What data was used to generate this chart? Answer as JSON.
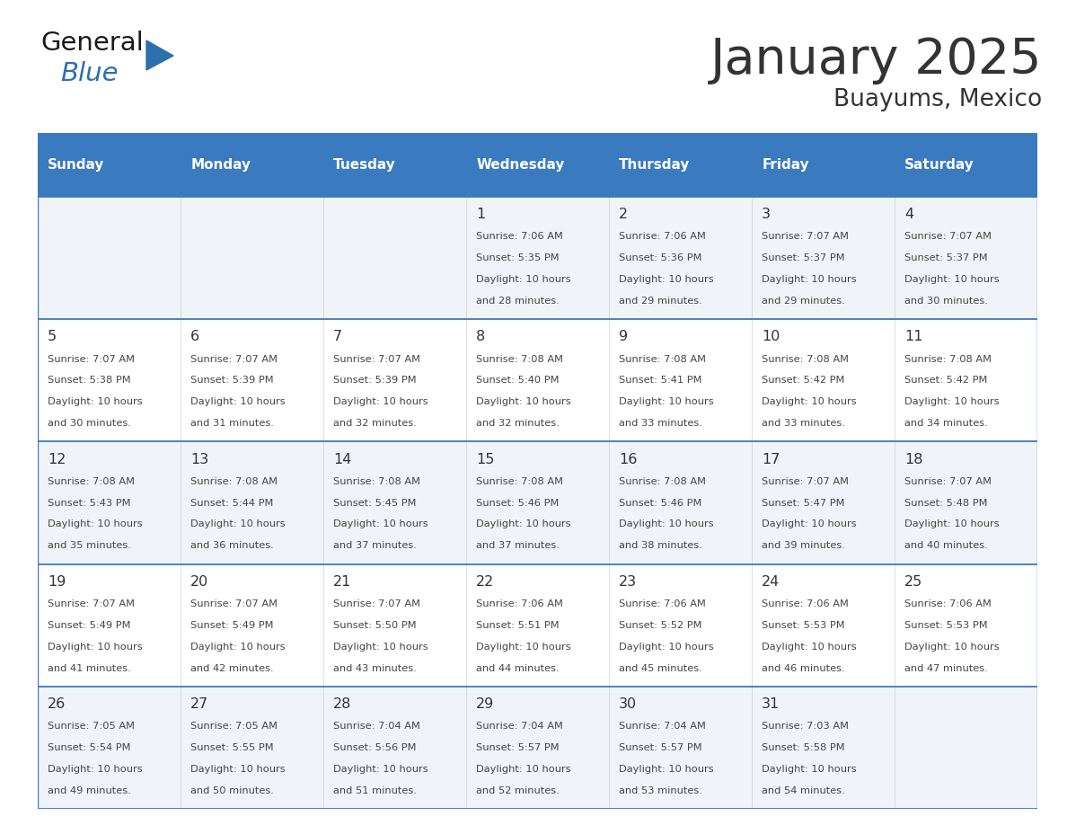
{
  "title": "January 2025",
  "subtitle": "Buayums, Mexico",
  "days_of_week": [
    "Sunday",
    "Monday",
    "Tuesday",
    "Wednesday",
    "Thursday",
    "Friday",
    "Saturday"
  ],
  "header_bg": "#3a7abf",
  "header_text": "#ffffff",
  "row_bg_odd": "#f0f4f8",
  "row_bg_even": "#ffffff",
  "date_text_color": "#333333",
  "info_text_color": "#444444",
  "grid_line_color": "#3a7abf",
  "calendar": [
    [
      null,
      null,
      null,
      {
        "day": 1,
        "sunrise": "7:06 AM",
        "sunset": "5:35 PM",
        "daylight_hrs": 10,
        "daylight_min": 28
      },
      {
        "day": 2,
        "sunrise": "7:06 AM",
        "sunset": "5:36 PM",
        "daylight_hrs": 10,
        "daylight_min": 29
      },
      {
        "day": 3,
        "sunrise": "7:07 AM",
        "sunset": "5:37 PM",
        "daylight_hrs": 10,
        "daylight_min": 29
      },
      {
        "day": 4,
        "sunrise": "7:07 AM",
        "sunset": "5:37 PM",
        "daylight_hrs": 10,
        "daylight_min": 30
      }
    ],
    [
      {
        "day": 5,
        "sunrise": "7:07 AM",
        "sunset": "5:38 PM",
        "daylight_hrs": 10,
        "daylight_min": 30
      },
      {
        "day": 6,
        "sunrise": "7:07 AM",
        "sunset": "5:39 PM",
        "daylight_hrs": 10,
        "daylight_min": 31
      },
      {
        "day": 7,
        "sunrise": "7:07 AM",
        "sunset": "5:39 PM",
        "daylight_hrs": 10,
        "daylight_min": 32
      },
      {
        "day": 8,
        "sunrise": "7:08 AM",
        "sunset": "5:40 PM",
        "daylight_hrs": 10,
        "daylight_min": 32
      },
      {
        "day": 9,
        "sunrise": "7:08 AM",
        "sunset": "5:41 PM",
        "daylight_hrs": 10,
        "daylight_min": 33
      },
      {
        "day": 10,
        "sunrise": "7:08 AM",
        "sunset": "5:42 PM",
        "daylight_hrs": 10,
        "daylight_min": 33
      },
      {
        "day": 11,
        "sunrise": "7:08 AM",
        "sunset": "5:42 PM",
        "daylight_hrs": 10,
        "daylight_min": 34
      }
    ],
    [
      {
        "day": 12,
        "sunrise": "7:08 AM",
        "sunset": "5:43 PM",
        "daylight_hrs": 10,
        "daylight_min": 35
      },
      {
        "day": 13,
        "sunrise": "7:08 AM",
        "sunset": "5:44 PM",
        "daylight_hrs": 10,
        "daylight_min": 36
      },
      {
        "day": 14,
        "sunrise": "7:08 AM",
        "sunset": "5:45 PM",
        "daylight_hrs": 10,
        "daylight_min": 37
      },
      {
        "day": 15,
        "sunrise": "7:08 AM",
        "sunset": "5:46 PM",
        "daylight_hrs": 10,
        "daylight_min": 37
      },
      {
        "day": 16,
        "sunrise": "7:08 AM",
        "sunset": "5:46 PM",
        "daylight_hrs": 10,
        "daylight_min": 38
      },
      {
        "day": 17,
        "sunrise": "7:07 AM",
        "sunset": "5:47 PM",
        "daylight_hrs": 10,
        "daylight_min": 39
      },
      {
        "day": 18,
        "sunrise": "7:07 AM",
        "sunset": "5:48 PM",
        "daylight_hrs": 10,
        "daylight_min": 40
      }
    ],
    [
      {
        "day": 19,
        "sunrise": "7:07 AM",
        "sunset": "5:49 PM",
        "daylight_hrs": 10,
        "daylight_min": 41
      },
      {
        "day": 20,
        "sunrise": "7:07 AM",
        "sunset": "5:49 PM",
        "daylight_hrs": 10,
        "daylight_min": 42
      },
      {
        "day": 21,
        "sunrise": "7:07 AM",
        "sunset": "5:50 PM",
        "daylight_hrs": 10,
        "daylight_min": 43
      },
      {
        "day": 22,
        "sunrise": "7:06 AM",
        "sunset": "5:51 PM",
        "daylight_hrs": 10,
        "daylight_min": 44
      },
      {
        "day": 23,
        "sunrise": "7:06 AM",
        "sunset": "5:52 PM",
        "daylight_hrs": 10,
        "daylight_min": 45
      },
      {
        "day": 24,
        "sunrise": "7:06 AM",
        "sunset": "5:53 PM",
        "daylight_hrs": 10,
        "daylight_min": 46
      },
      {
        "day": 25,
        "sunrise": "7:06 AM",
        "sunset": "5:53 PM",
        "daylight_hrs": 10,
        "daylight_min": 47
      }
    ],
    [
      {
        "day": 26,
        "sunrise": "7:05 AM",
        "sunset": "5:54 PM",
        "daylight_hrs": 10,
        "daylight_min": 49
      },
      {
        "day": 27,
        "sunrise": "7:05 AM",
        "sunset": "5:55 PM",
        "daylight_hrs": 10,
        "daylight_min": 50
      },
      {
        "day": 28,
        "sunrise": "7:04 AM",
        "sunset": "5:56 PM",
        "daylight_hrs": 10,
        "daylight_min": 51
      },
      {
        "day": 29,
        "sunrise": "7:04 AM",
        "sunset": "5:57 PM",
        "daylight_hrs": 10,
        "daylight_min": 52
      },
      {
        "day": 30,
        "sunrise": "7:04 AM",
        "sunset": "5:57 PM",
        "daylight_hrs": 10,
        "daylight_min": 53
      },
      {
        "day": 31,
        "sunrise": "7:03 AM",
        "sunset": "5:58 PM",
        "daylight_hrs": 10,
        "daylight_min": 54
      },
      null
    ]
  ],
  "logo_general_color": "#1a1a1a",
  "logo_blue_color": "#2e6fad",
  "fig_width": 11.88,
  "fig_height": 9.18,
  "dpi": 100
}
